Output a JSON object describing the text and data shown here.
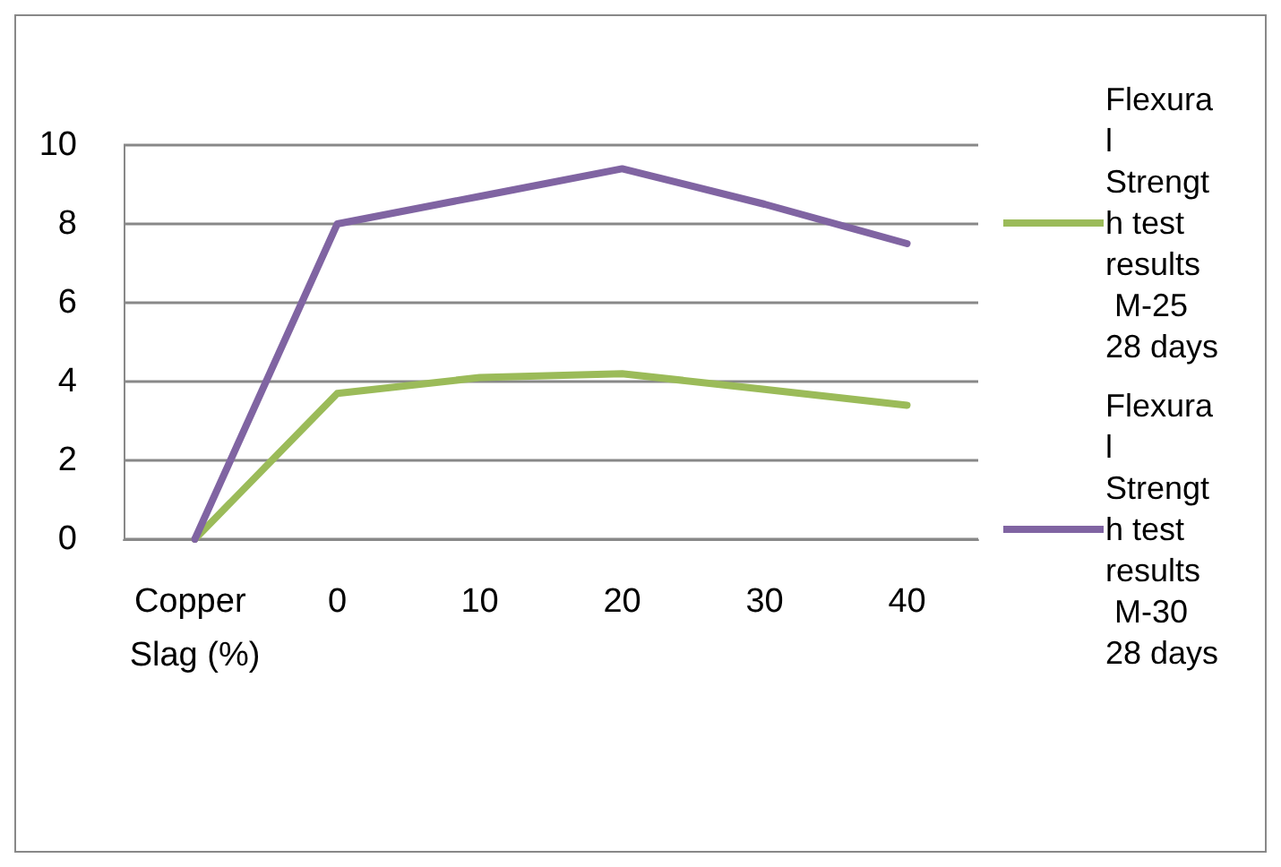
{
  "chart_data": {
    "type": "line",
    "categories": [
      "Copper Slag (%)",
      "0",
      "10",
      "20",
      "30",
      "40"
    ],
    "series": [
      {
        "name": "Flexural Strength test results M-25 28 days",
        "color": "#9bbb59",
        "values": [
          0,
          3.7,
          4.1,
          4.2,
          3.8,
          3.4
        ]
      },
      {
        "name": "Flexural Strength test results M-30 28 days",
        "color": "#8064a2",
        "values": [
          0,
          8.0,
          8.7,
          9.4,
          8.5,
          7.5
        ]
      }
    ],
    "ylim": [
      0,
      10
    ],
    "yticks": [
      0,
      2,
      4,
      6,
      8,
      10
    ],
    "grid": "y",
    "legend": "right",
    "marker": "none"
  }
}
